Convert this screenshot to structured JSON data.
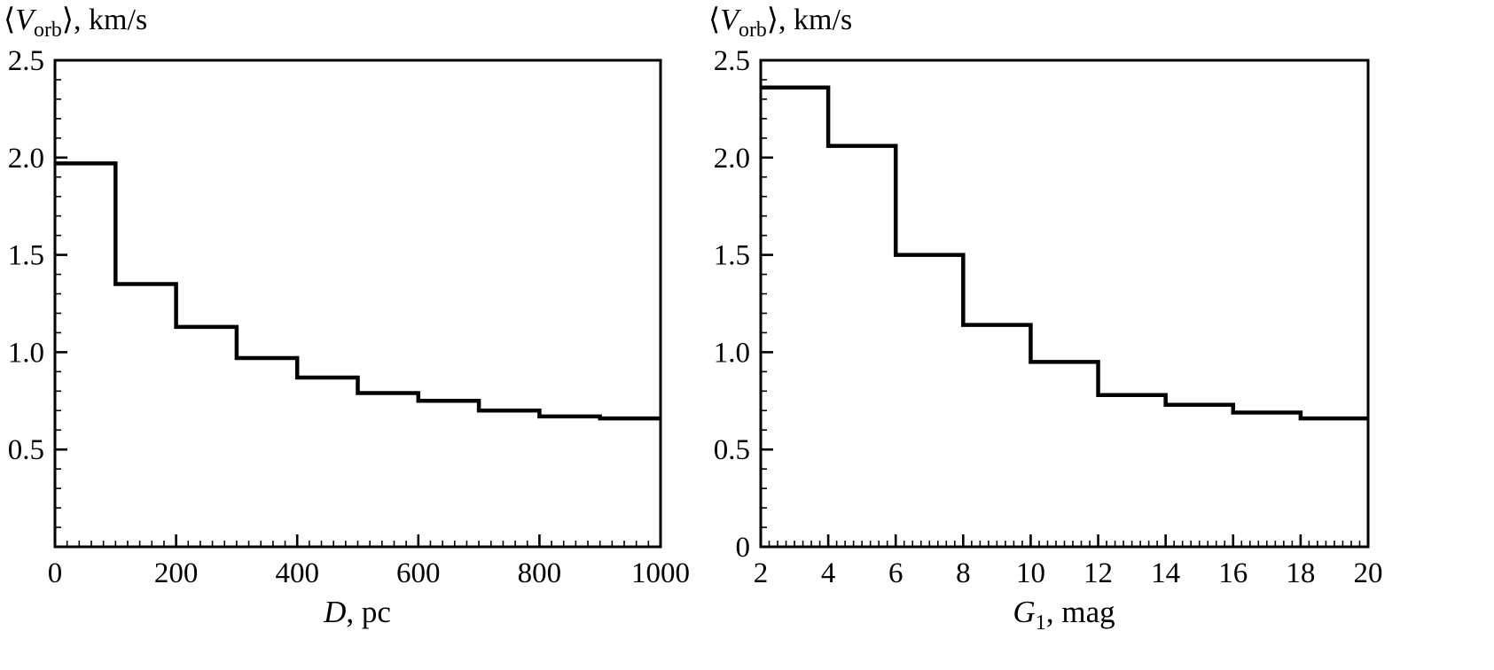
{
  "style": {
    "background": "#ffffff",
    "axis_color": "#000000",
    "line_color": "#000000"
  },
  "chart_data": [
    {
      "type": "step",
      "title": "⟨V_orb⟩, km/s",
      "title_parts": {
        "open": "⟨",
        "variable": "V",
        "subscript": "orb",
        "close": "⟩, km/s"
      },
      "xlabel": "D, pc",
      "xlabel_parts": {
        "variable": "D",
        "subscript": "",
        "rest": ", pc"
      },
      "ylabel": "⟨V_orb⟩, km/s",
      "xlim": [
        0,
        1000
      ],
      "ylim": [
        0,
        2.5
      ],
      "xtick_values": [
        0,
        200,
        400,
        600,
        800,
        1000
      ],
      "xtick_labels": [
        "0",
        "200",
        "400",
        "600",
        "800",
        "1000"
      ],
      "ytick_values": [
        0,
        0.5,
        1.0,
        1.5,
        2.0,
        2.5
      ],
      "ytick_labels": [
        "",
        "0.5",
        "1.0",
        "1.5",
        "2.0",
        "2.5"
      ],
      "x_minor_step": 20,
      "y_minor_step": 0.1,
      "bin_edges": [
        0,
        100,
        200,
        300,
        400,
        500,
        600,
        700,
        800,
        900,
        1000
      ],
      "values": [
        1.97,
        1.35,
        1.13,
        0.97,
        0.87,
        0.79,
        0.75,
        0.7,
        0.67,
        0.66
      ],
      "grid": false,
      "legend": "none"
    },
    {
      "type": "step",
      "title": "⟨V_orb⟩, km/s",
      "title_parts": {
        "open": "⟨",
        "variable": "V",
        "subscript": "orb",
        "close": "⟩, km/s"
      },
      "xlabel": "G1, mag",
      "xlabel_parts": {
        "variable": "G",
        "subscript": "1",
        "rest": ", mag"
      },
      "ylabel": "⟨V_orb⟩, km/s",
      "xlim": [
        2,
        20
      ],
      "ylim": [
        0,
        2.5
      ],
      "xtick_values": [
        2,
        4,
        6,
        8,
        10,
        12,
        14,
        16,
        18,
        20
      ],
      "xtick_labels": [
        "2",
        "4",
        "6",
        "8",
        "10",
        "12",
        "14",
        "16",
        "18",
        "20"
      ],
      "ytick_values": [
        0,
        0.5,
        1.0,
        1.5,
        2.0,
        2.5
      ],
      "ytick_labels": [
        "0",
        "0.5",
        "1.0",
        "1.5",
        "2.0",
        "2.5"
      ],
      "x_minor_step": 0.25,
      "y_minor_step": 0.1,
      "bin_edges": [
        2,
        4,
        6,
        8,
        10,
        12,
        14,
        16,
        18,
        20
      ],
      "values": [
        2.36,
        2.06,
        1.5,
        1.14,
        0.95,
        0.78,
        0.73,
        0.69,
        0.66
      ],
      "grid": false,
      "legend": "none"
    }
  ]
}
